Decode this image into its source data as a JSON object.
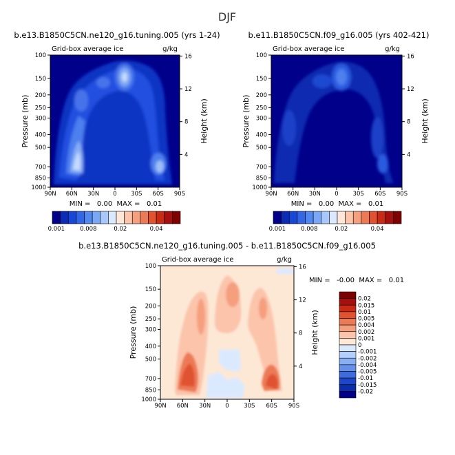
{
  "page": {
    "title": "DJF"
  },
  "panels": [
    {
      "title": "b.e13.B1850C5CN.ne120_g16.tuning.005 (yrs 1-24)",
      "subtitle_left": "Grid-box average ice",
      "subtitle_right": "g/kg",
      "ylabel": "Pressure (mb)",
      "ylabel_right": "Height (km)",
      "minmax": "MIN =   0.00  MAX =   0.01"
    },
    {
      "title": "b.e11.B1850C5CN.f09_g16.005 (yrs 402-421)",
      "subtitle_left": "Grid-box average ice",
      "subtitle_right": "g/kg",
      "ylabel": "Pressure (mb)",
      "ylabel_right": "Height (km)",
      "minmax": "MIN =   0.00  MAX =   0.01"
    },
    {
      "title": "b.e13.B1850C5CN.ne120_g16.tuning.005 - b.e11.B1850C5CN.f09_g16.005",
      "subtitle_left": "Grid-box average ice",
      "subtitle_right": "g/kg",
      "ylabel": "Pressure (mb)",
      "ylabel_right": "Height (km)",
      "minmax": "MIN =   -0.00  MAX =   0.01"
    }
  ],
  "axes": {
    "x_ticks": [
      "90N",
      "60N",
      "30N",
      "0",
      "30S",
      "60S",
      "90S"
    ],
    "p_ticks": [
      "100",
      "150",
      "200",
      "250",
      "300",
      "400",
      "500",
      "700",
      "850",
      "1000"
    ],
    "h_ticks": [
      "16",
      "12",
      "8",
      "4"
    ]
  },
  "colorbars": {
    "abs_labels": [
      "0.001",
      "0.008",
      "0.02",
      "0.04"
    ],
    "diff_labels": [
      "0.02",
      "0.015",
      "0.01",
      "0.005",
      "0.004",
      "0.002",
      "0.001",
      "0",
      "-0.001",
      "-0.002",
      "-0.004",
      "-0.005",
      "-0.01",
      "-0.015",
      "-0.02"
    ],
    "abs_colors": [
      "#00008b",
      "#0c2cb5",
      "#1846d6",
      "#3366e6",
      "#5288f0",
      "#7aa7f6",
      "#a8c8fb",
      "#dbe9ff",
      "#ffe6d9",
      "#fbc4ab",
      "#f59f7f",
      "#ec7a57",
      "#e05230",
      "#c92a14",
      "#a50f0f",
      "#7f0000"
    ],
    "diff_colors": [
      "#7f0000",
      "#a50f0f",
      "#c92a14",
      "#e05230",
      "#ec7a57",
      "#f59f7f",
      "#fbc4ab",
      "#fde8d6",
      "#dbe9ff",
      "#b3cffb",
      "#8aaef4",
      "#6690ea",
      "#3f6cdd",
      "#1f45c9",
      "#0c2ca8",
      "#00008b"
    ]
  },
  "chart_data": [
    {
      "type": "heatmap",
      "title": "b.e13.B1850C5CN.ne120_g16.tuning.005 (yrs 1-24)",
      "xlabel": "",
      "ylabel": "Pressure (mb)",
      "x_range": [
        "90N",
        "90S"
      ],
      "y_range_mb": [
        100,
        1000
      ],
      "units": "g/kg",
      "variable": "Grid-box average ice",
      "min": 0.0,
      "max": 0.01
    },
    {
      "type": "heatmap",
      "title": "b.e11.B1850C5CN.f09_g16.005 (yrs 402-421)",
      "xlabel": "",
      "ylabel": "Pressure (mb)",
      "x_range": [
        "90N",
        "90S"
      ],
      "y_range_mb": [
        100,
        1000
      ],
      "units": "g/kg",
      "variable": "Grid-box average ice",
      "min": 0.0,
      "max": 0.01
    },
    {
      "type": "heatmap",
      "title": "b.e13.B1850C5CN.ne120_g16.tuning.005 - b.e11.B1850C5CN.f09_g16.005",
      "xlabel": "",
      "ylabel": "Pressure (mb)",
      "x_range": [
        "90N",
        "90S"
      ],
      "y_range_mb": [
        100,
        1000
      ],
      "units": "g/kg",
      "variable": "Grid-box average ice",
      "min": -0.0,
      "max": 0.01
    }
  ]
}
